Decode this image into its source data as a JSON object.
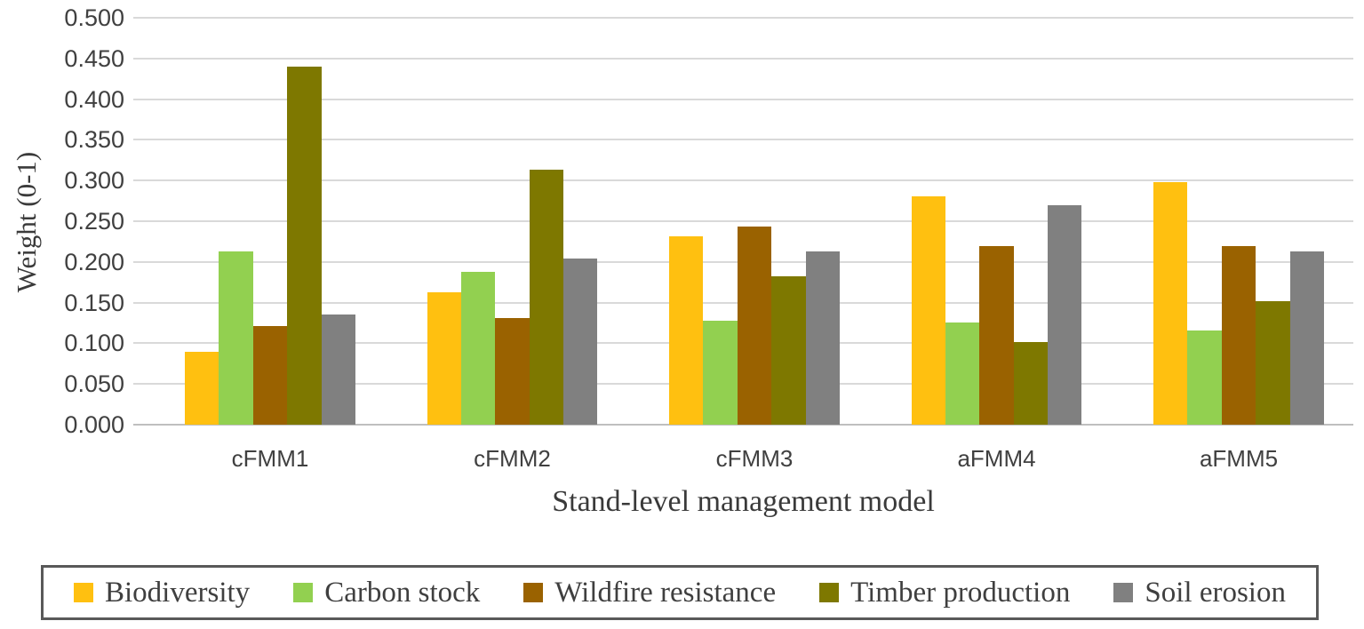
{
  "chart_data": {
    "type": "bar",
    "title": "",
    "xlabel": "Stand-level management model",
    "ylabel": "Weight (0-1)",
    "categories": [
      "cFMM1",
      "cFMM2",
      "cFMM3",
      "aFMM4",
      "aFMM5"
    ],
    "series": [
      {
        "name": "Biodiversity",
        "color": "#FFC010",
        "values": [
          0.089,
          0.163,
          0.231,
          0.281,
          0.298
        ]
      },
      {
        "name": "Carbon stock",
        "color": "#92D050",
        "values": [
          0.213,
          0.188,
          0.128,
          0.126,
          0.116
        ]
      },
      {
        "name": "Wildfire resistance",
        "color": "#9A6200",
        "values": [
          0.121,
          0.131,
          0.244,
          0.219,
          0.219
        ]
      },
      {
        "name": "Timber production",
        "color": "#7E7800",
        "values": [
          0.44,
          0.313,
          0.182,
          0.101,
          0.152
        ]
      },
      {
        "name": "Soil erosion",
        "color": "#808080",
        "values": [
          0.135,
          0.204,
          0.213,
          0.27,
          0.213
        ]
      }
    ],
    "ylim": [
      0,
      0.5
    ],
    "ytick_step": 0.05,
    "ytick_decimals": 3,
    "grid": true,
    "legend_position": "bottom",
    "colors": {
      "gridline": "#d9d9d9",
      "axis_line": "#bfbfbf",
      "tick_text": "#404040",
      "title_text": "#3a3a3a",
      "legend_border": "#595959"
    }
  }
}
